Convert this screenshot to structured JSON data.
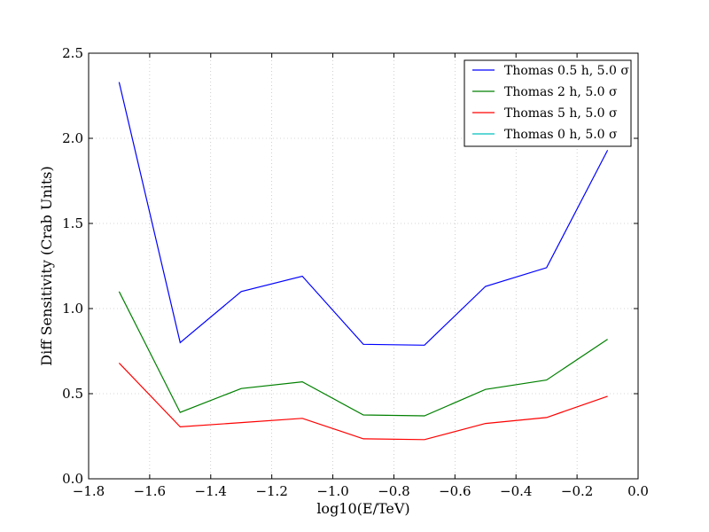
{
  "chart_data": {
    "type": "line",
    "title": "",
    "xlabel": "log10(E/TeV)",
    "ylabel": "Diff Sensitivity (Crab Units)",
    "xlim": [
      -1.8,
      0.0
    ],
    "ylim": [
      0.0,
      2.5
    ],
    "x_ticks": [
      -1.8,
      -1.6,
      -1.4,
      -1.2,
      -1.0,
      -0.8,
      -0.6,
      -0.4,
      -0.2,
      0.0
    ],
    "y_ticks": [
      0.0,
      0.5,
      1.0,
      1.5,
      2.0,
      2.5
    ],
    "x_tick_labels": [
      "−1.8",
      "−1.6",
      "−1.4",
      "−1.2",
      "−1.0",
      "−0.8",
      "−0.6",
      "−0.4",
      "−0.2",
      "0.0"
    ],
    "y_tick_labels": [
      "0.0",
      "0.5",
      "1.0",
      "1.5",
      "2.0",
      "2.5"
    ],
    "grid": true,
    "legend_position": "top-right",
    "series": [
      {
        "name": "Thomas 0.5 h, 5.0 σ",
        "color": "#0000ff",
        "x": [
          -1.7,
          -1.5,
          -1.3,
          -1.1,
          -0.9,
          -0.7,
          -0.5,
          -0.3,
          -0.1
        ],
        "y": [
          2.33,
          0.8,
          1.1,
          1.19,
          0.79,
          0.785,
          1.13,
          1.24,
          1.93
        ]
      },
      {
        "name": "Thomas 2 h, 5.0 σ",
        "color": "#008000",
        "x": [
          -1.7,
          -1.5,
          -1.3,
          -1.1,
          -0.9,
          -0.7,
          -0.5,
          -0.3,
          -0.1
        ],
        "y": [
          1.1,
          0.39,
          0.53,
          0.57,
          0.375,
          0.37,
          0.525,
          0.58,
          0.82
        ]
      },
      {
        "name": "Thomas 5 h, 5.0 σ",
        "color": "#ff0000",
        "x": [
          -1.7,
          -1.5,
          -1.3,
          -1.1,
          -0.9,
          -0.7,
          -0.5,
          -0.3,
          -0.1
        ],
        "y": [
          0.68,
          0.305,
          0.33,
          0.355,
          0.235,
          0.23,
          0.325,
          0.36,
          0.485
        ]
      },
      {
        "name": "Thomas 0 h, 5.0 σ",
        "color": "#00bfbf",
        "x": [],
        "y": []
      }
    ]
  }
}
